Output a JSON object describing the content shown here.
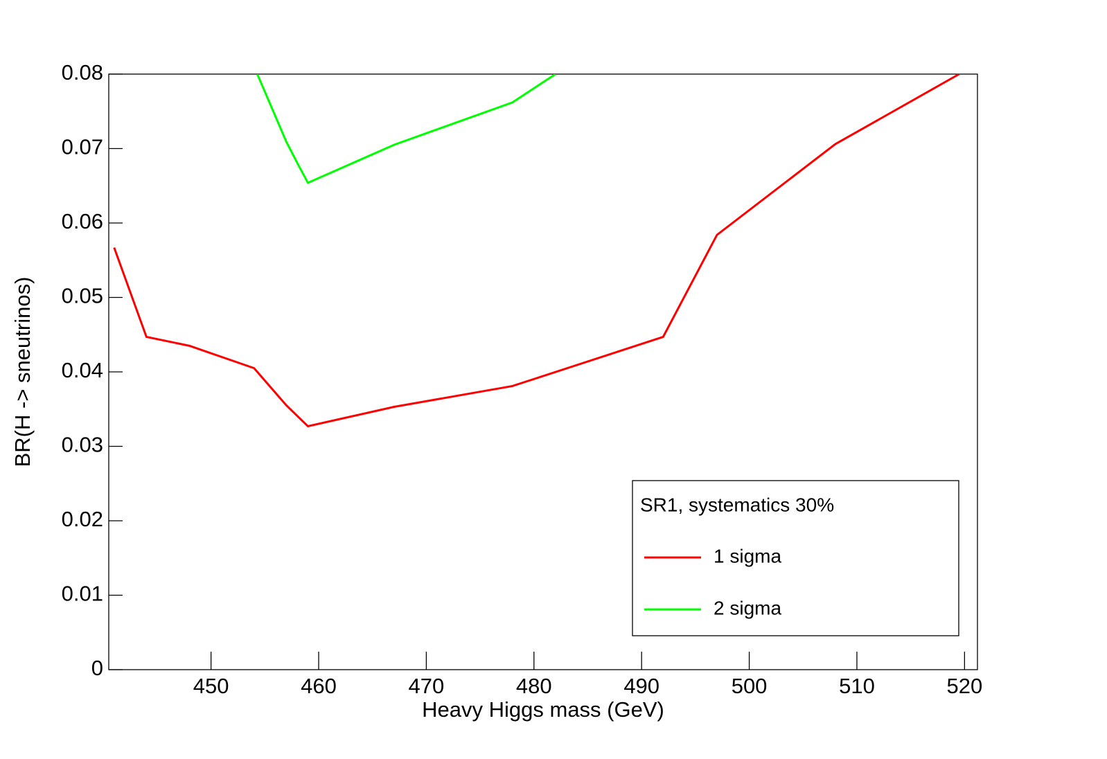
{
  "chart_data": {
    "type": "line",
    "xlabel": "Heavy Higgs mass (GeV)",
    "ylabel": "BR(H -> sneutrinos)",
    "xlim": [
      440.5,
      521.2
    ],
    "ylim": [
      0,
      0.08
    ],
    "xticks": [
      450,
      460,
      470,
      480,
      490,
      500,
      510,
      520
    ],
    "yticks": [
      0,
      0.01,
      0.02,
      0.03,
      0.04,
      0.05,
      0.06,
      0.07,
      0.08
    ],
    "legend_title": "SR1, systematics 30%",
    "legend_position": "lower right",
    "series": [
      {
        "name": "1 sigma",
        "color": "#ff0000",
        "x": [
          441,
          444,
          448,
          454,
          457,
          458,
          459,
          467,
          478,
          492,
          497,
          508,
          519.5
        ],
        "values": [
          0.0567,
          0.0447,
          0.0435,
          0.0405,
          0.0355,
          0.0341,
          0.0327,
          0.0353,
          0.0381,
          0.0447,
          0.0584,
          0.0706,
          0.08
        ]
      },
      {
        "name": "2 sigma",
        "color": "#00ff00",
        "x": [
          454.3,
          457,
          458,
          459,
          467,
          478,
          482
        ],
        "values": [
          0.08,
          0.0709,
          0.0681,
          0.0654,
          0.0705,
          0.0762,
          0.08
        ]
      }
    ]
  }
}
